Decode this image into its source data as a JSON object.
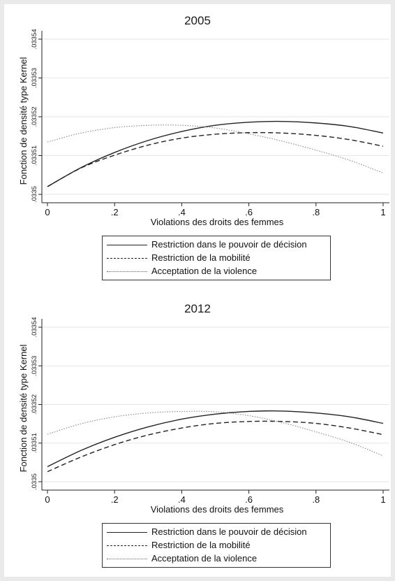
{
  "chart_data": [
    {
      "type": "line",
      "title": "2005",
      "xlabel": "Violations des droits des femmes",
      "ylabel": "Fonction de densité type Kernel",
      "xlim": [
        0,
        1
      ],
      "ylim": [
        0.0335,
        0.03354
      ],
      "xticks": [
        0,
        0.2,
        0.4,
        0.6,
        0.8,
        1
      ],
      "xtick_labels": [
        "0",
        ".2",
        ".4",
        ".6",
        ".8",
        "1"
      ],
      "yticks": [
        0.0335,
        0.03351,
        0.03352,
        0.03353,
        0.03354
      ],
      "ytick_labels": [
        ".0335",
        ".03351",
        ".03352",
        ".03353",
        ".03354"
      ],
      "grid": true,
      "legend_position": "bottom",
      "series": [
        {
          "name": "Restriction dans le pouvoir de décision",
          "style": "solid",
          "x": [
            0,
            0.1,
            0.2,
            0.3,
            0.4,
            0.5,
            0.6,
            0.7,
            0.8,
            0.9,
            1
          ],
          "y": [
            0.033502,
            0.0335069,
            0.0335108,
            0.0335139,
            0.0335162,
            0.0335178,
            0.0335186,
            0.0335188,
            0.0335184,
            0.0335175,
            0.0335158
          ]
        },
        {
          "name": "Restriction de la mobilité",
          "style": "dashed",
          "x": [
            0,
            0.1,
            0.2,
            0.3,
            0.4,
            0.5,
            0.6,
            0.7,
            0.8,
            0.9,
            1
          ],
          "y": [
            0.033502,
            0.0335068,
            0.0335101,
            0.0335127,
            0.0335145,
            0.0335155,
            0.0335159,
            0.0335158,
            0.0335152,
            0.0335141,
            0.0335124
          ]
        },
        {
          "name": "Acceptation de la violence",
          "style": "dotted",
          "x": [
            0,
            0.1,
            0.2,
            0.3,
            0.4,
            0.5,
            0.6,
            0.7,
            0.8,
            0.9,
            1
          ],
          "y": [
            0.0335135,
            0.0335158,
            0.0335172,
            0.0335178,
            0.0335178,
            0.0335171,
            0.0335156,
            0.0335137,
            0.0335114,
            0.0335088,
            0.0335055
          ]
        }
      ]
    },
    {
      "type": "line",
      "title": "2012",
      "xlabel": "Violations des droits des femmes",
      "ylabel": "Fonction de densité type Kernel",
      "xlim": [
        0,
        1
      ],
      "ylim": [
        0.0335,
        0.03354
      ],
      "xticks": [
        0,
        0.2,
        0.4,
        0.6,
        0.8,
        1
      ],
      "xtick_labels": [
        "0",
        ".2",
        ".4",
        ".6",
        ".8",
        "1"
      ],
      "yticks": [
        0.0335,
        0.03351,
        0.03352,
        0.03353,
        0.03354
      ],
      "ytick_labels": [
        ".0335",
        ".03351",
        ".03352",
        ".03353",
        ".03354"
      ],
      "grid": true,
      "legend_position": "bottom",
      "series": [
        {
          "name": "Restriction dans le pouvoir de décision",
          "style": "solid",
          "x": [
            0,
            0.1,
            0.2,
            0.3,
            0.4,
            0.5,
            0.6,
            0.7,
            0.8,
            0.9,
            1
          ],
          "y": [
            0.0335039,
            0.0335081,
            0.0335115,
            0.0335142,
            0.0335162,
            0.0335175,
            0.0335182,
            0.0335183,
            0.0335178,
            0.0335168,
            0.0335151
          ]
        },
        {
          "name": "Restriction de la mobilité",
          "style": "dashed",
          "x": [
            0,
            0.1,
            0.2,
            0.3,
            0.4,
            0.5,
            0.6,
            0.7,
            0.8,
            0.9,
            1
          ],
          "y": [
            0.0335026,
            0.0335064,
            0.0335096,
            0.0335121,
            0.0335139,
            0.0335151,
            0.0335156,
            0.0335156,
            0.0335151,
            0.0335139,
            0.0335122
          ]
        },
        {
          "name": "Acceptation de la violence",
          "style": "dotted",
          "x": [
            0,
            0.1,
            0.2,
            0.3,
            0.4,
            0.5,
            0.6,
            0.7,
            0.8,
            0.9,
            1
          ],
          "y": [
            0.0335123,
            0.033515,
            0.0335168,
            0.0335178,
            0.0335182,
            0.0335181,
            0.0335171,
            0.0335153,
            0.0335129,
            0.0335102,
            0.0335067
          ]
        }
      ]
    }
  ]
}
